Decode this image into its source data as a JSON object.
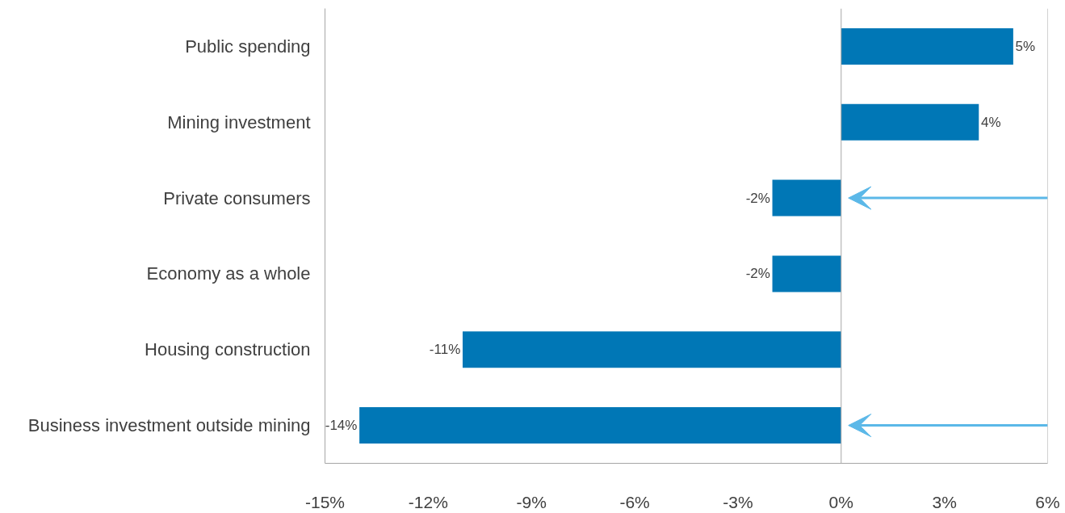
{
  "chart_data": {
    "type": "bar",
    "orientation": "horizontal",
    "categories": [
      "Public spending",
      "Mining investment",
      "Private consumers",
      "Economy as a whole",
      "Housing construction",
      "Business investment outside mining"
    ],
    "values": [
      5,
      4,
      -2,
      -2,
      -11,
      -14
    ],
    "value_labels": [
      "5%",
      "4%",
      "-2%",
      "-2%",
      "-11%",
      "-14%"
    ],
    "color": "#0077b6",
    "xlim": [
      -15,
      6
    ],
    "xticks": [
      {
        "value": -15,
        "label": "-15%"
      },
      {
        "value": -12,
        "label": "-12%"
      },
      {
        "value": -9,
        "label": "-9%"
      },
      {
        "value": -6,
        "label": "-6%"
      },
      {
        "value": -3,
        "label": "-3%"
      },
      {
        "value": 0,
        "label": "0%"
      },
      {
        "value": 3,
        "label": "3%"
      },
      {
        "value": 6,
        "label": "6%"
      }
    ],
    "ref_lines": [
      {
        "axis": "x",
        "value": 0,
        "label": null,
        "color": "#a6a6a6"
      }
    ],
    "grid": false
  }
}
